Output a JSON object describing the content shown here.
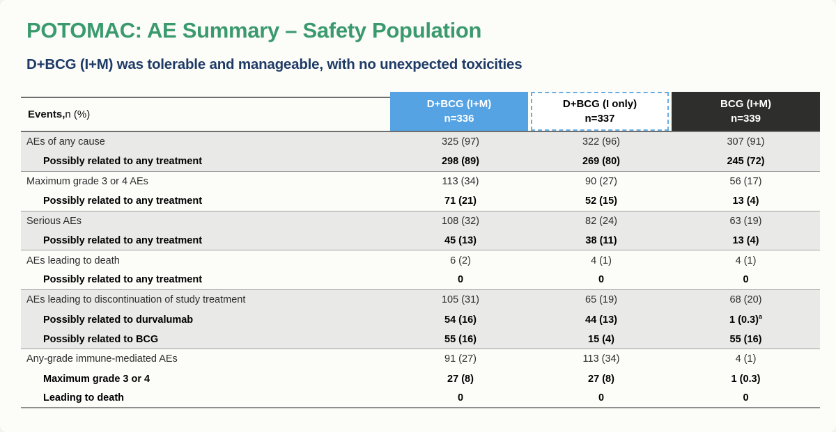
{
  "slide": {
    "title": "POTOMAC: AE Summary – Safety Population",
    "subtitle": "D+BCG (I+M) was tolerable and manageable, with no unexpected toxicities"
  },
  "colors": {
    "title_green": "#3a9a6d",
    "subtitle_navy": "#1e3a66",
    "header_blue": "#55a3e3",
    "header_dashed_border": "#69ade0",
    "header_dark": "#2e2e2c",
    "row_band_gray": "#e9e9e7"
  },
  "table": {
    "row_header_bold": "Events,",
    "row_header_rest": " n (%)",
    "columns": [
      {
        "label": "D+BCG (I+M)",
        "n": "n=336",
        "style": "blue"
      },
      {
        "label": "D+BCG (I only)",
        "n": "n=337",
        "style": "dashed"
      },
      {
        "label": "BCG (I+M)",
        "n": "n=339",
        "style": "dark"
      }
    ],
    "rows": [
      {
        "label": "AEs of any cause",
        "sub": false,
        "shade": "gray",
        "sep": false,
        "values": [
          "325 (97)",
          "322 (96)",
          "307 (91)"
        ]
      },
      {
        "label": "Possibly related to any treatment",
        "sub": true,
        "shade": "gray",
        "sep": true,
        "values": [
          "298 (89)",
          "269 (80)",
          "245 (72)"
        ]
      },
      {
        "label": "Maximum grade 3 or 4 AEs",
        "sub": false,
        "shade": "white",
        "sep": false,
        "values": [
          "113 (34)",
          "90 (27)",
          "56 (17)"
        ]
      },
      {
        "label": "Possibly related to any treatment",
        "sub": true,
        "shade": "white",
        "sep": true,
        "values": [
          "71 (21)",
          "52 (15)",
          "13 (4)"
        ]
      },
      {
        "label": "Serious AEs",
        "sub": false,
        "shade": "gray",
        "sep": false,
        "values": [
          "108 (32)",
          "82 (24)",
          "63 (19)"
        ]
      },
      {
        "label": "Possibly related to any treatment",
        "sub": true,
        "shade": "gray",
        "sep": true,
        "values": [
          "45 (13)",
          "38 (11)",
          "13 (4)"
        ]
      },
      {
        "label": "AEs leading to death",
        "sub": false,
        "shade": "white",
        "sep": false,
        "values": [
          "6 (2)",
          "4 (1)",
          "4 (1)"
        ]
      },
      {
        "label": "Possibly related to any treatment",
        "sub": true,
        "shade": "white",
        "sep": true,
        "values": [
          "0",
          "0",
          "0"
        ]
      },
      {
        "label": "AEs leading to discontinuation of study treatment",
        "sub": false,
        "shade": "gray",
        "sep": false,
        "values": [
          "105 (31)",
          "65 (19)",
          "68 (20)"
        ]
      },
      {
        "label": "Possibly related to durvalumab",
        "sub": true,
        "shade": "gray",
        "sep": false,
        "values": [
          "54 (16)",
          "44 (13)",
          "1 (0.3)"
        ],
        "sups": [
          null,
          null,
          "a"
        ]
      },
      {
        "label": "Possibly related to BCG",
        "sub": true,
        "shade": "gray",
        "sep": true,
        "values": [
          "55 (16)",
          "15 (4)",
          "55 (16)"
        ]
      },
      {
        "label": "Any-grade immune-mediated AEs",
        "sub": false,
        "shade": "white",
        "sep": false,
        "values": [
          "91 (27)",
          "113 (34)",
          "4 (1)"
        ]
      },
      {
        "label": "Maximum grade 3 or 4",
        "sub": true,
        "shade": "white",
        "sep": false,
        "values": [
          "27 (8)",
          "27 (8)",
          "1 (0.3)"
        ]
      },
      {
        "label": "Leading to death",
        "sub": true,
        "shade": "white",
        "sep": false,
        "values": [
          "0",
          "0",
          "0"
        ]
      }
    ]
  }
}
